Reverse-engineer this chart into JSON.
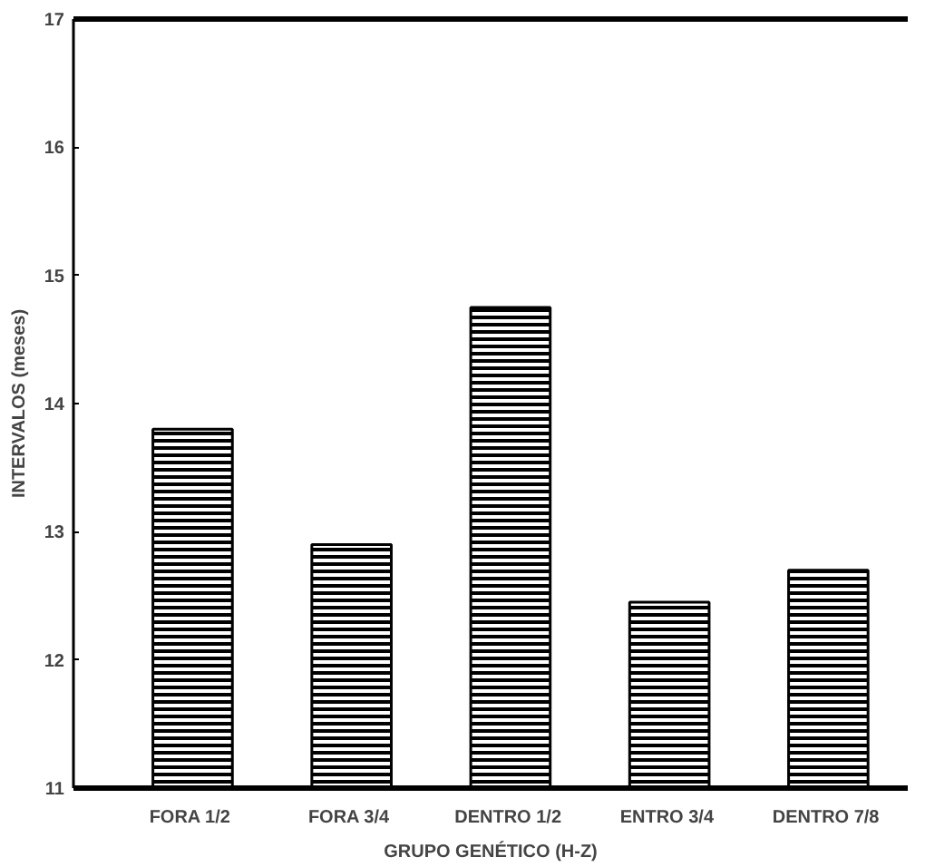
{
  "chart_data": {
    "type": "bar",
    "xlabel": "GRUPO GENÉTICO (H-Z)",
    "ylabel": "INTERVALOS (meses)",
    "categories": [
      "FORA  1/2",
      "FORA  3/4",
      "DENTRO  1/2",
      "ENTRO  3/4",
      "DENTRO  7/8"
    ],
    "values": [
      13.8,
      12.9,
      14.75,
      12.45,
      12.7
    ],
    "color": "#000000",
    "ylim": [
      11,
      17
    ],
    "yticks": [
      11,
      12,
      13,
      14,
      15,
      16,
      17
    ],
    "grid": false
  }
}
